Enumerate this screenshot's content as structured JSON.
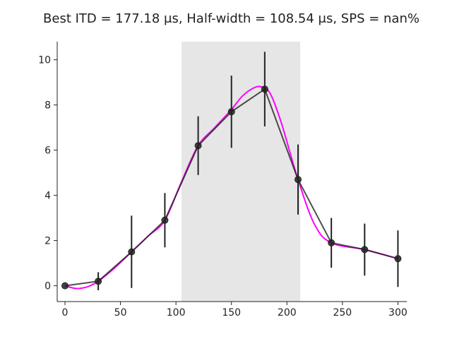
{
  "chart_data": {
    "type": "line",
    "title": "Best ITD = 177.18 μs, Half-width = 108.54 μs, SPS = nan%",
    "xlabel": "",
    "ylabel": "",
    "xlim": [
      -7,
      308
    ],
    "ylim": [
      -0.7,
      10.8
    ],
    "xticks": [
      0,
      50,
      100,
      150,
      200,
      250,
      300
    ],
    "yticks": [
      0,
      2,
      4,
      6,
      8,
      10
    ],
    "grid": false,
    "shaded_region": [
      105,
      212
    ],
    "series": [
      {
        "kind": "data_with_errorbars",
        "x": [
          0,
          30,
          60,
          90,
          120,
          150,
          180,
          210,
          240,
          270,
          300
        ],
        "values": [
          0.0,
          0.2,
          1.5,
          2.9,
          6.2,
          7.7,
          8.7,
          4.7,
          1.9,
          1.6,
          1.2
        ],
        "yerr": [
          0.0,
          0.4,
          1.6,
          1.2,
          1.3,
          1.6,
          1.65,
          1.55,
          1.1,
          1.15,
          1.25
        ],
        "color": "#222222"
      },
      {
        "kind": "fit",
        "x": [
          0,
          10,
          20,
          30,
          45,
          60,
          75,
          90,
          105,
          120,
          135,
          150,
          160,
          170,
          177,
          185,
          195,
          210,
          225,
          240,
          270,
          300
        ],
        "values": [
          0.0,
          -0.12,
          -0.05,
          0.2,
          0.8,
          1.5,
          2.2,
          2.9,
          4.6,
          6.2,
          7.0,
          7.8,
          8.4,
          8.75,
          8.8,
          8.5,
          7.2,
          4.7,
          2.7,
          1.9,
          1.6,
          1.2
        ],
        "color": "#ff00ff"
      }
    ]
  }
}
